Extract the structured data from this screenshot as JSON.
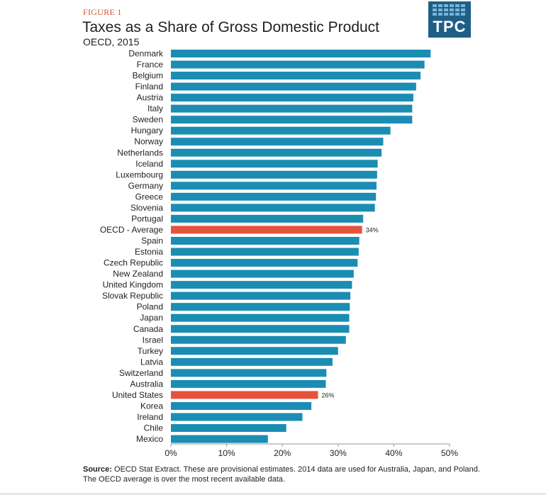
{
  "figure_label": "FIGURE 1",
  "logo_text": "TPC",
  "source": {
    "label": "Source:",
    "text": "OECD Stat Extract. These are provisional estimates. 2014 data are used for Australia, Japan, and Poland. The OECD average is over the most recent available data."
  },
  "colors": {
    "bar": "#1b8db3",
    "highlight": "#e5533d",
    "axis": "#9a9a9a"
  },
  "chart_data": {
    "type": "bar",
    "orientation": "horizontal",
    "title": "Taxes as a Share of Gross Domestic Product",
    "subtitle": "OECD, 2015",
    "xlabel": "",
    "ylabel": "",
    "xlim": [
      0,
      50
    ],
    "ticks": [
      0,
      10,
      20,
      30,
      40,
      50
    ],
    "tick_labels": [
      "0%",
      "10%",
      "20%",
      "30%",
      "40%",
      "50%"
    ],
    "grid": false,
    "categories": [
      "Denmark",
      "France",
      "Belgium",
      "Finland",
      "Austria",
      "Italy",
      "Sweden",
      "Hungary",
      "Norway",
      "Netherlands",
      "Iceland",
      "Luxembourg",
      "Germany",
      "Greece",
      "Slovenia",
      "Portugal",
      "OECD - Average",
      "Spain",
      "Estonia",
      "Czech Republic",
      "New Zealand",
      "United Kingdom",
      "Slovak Republic",
      "Poland",
      "Japan",
      "Canada",
      "Israel",
      "Turkey",
      "Latvia",
      "Switzerland",
      "Australia",
      "United States",
      "Korea",
      "Ireland",
      "Chile",
      "Mexico"
    ],
    "values": [
      46.6,
      45.5,
      44.8,
      44.0,
      43.5,
      43.3,
      43.3,
      39.4,
      38.1,
      37.8,
      37.1,
      37.0,
      36.9,
      36.8,
      36.6,
      34.5,
      34.3,
      33.8,
      33.7,
      33.5,
      32.8,
      32.5,
      32.2,
      32.1,
      32.0,
      32.0,
      31.4,
      30.0,
      29.0,
      27.9,
      27.8,
      26.4,
      25.2,
      23.6,
      20.7,
      17.4
    ],
    "highlighted": [
      "OECD - Average",
      "United States"
    ],
    "data_labels": {
      "OECD - Average": "34%",
      "United States": "26%"
    }
  }
}
